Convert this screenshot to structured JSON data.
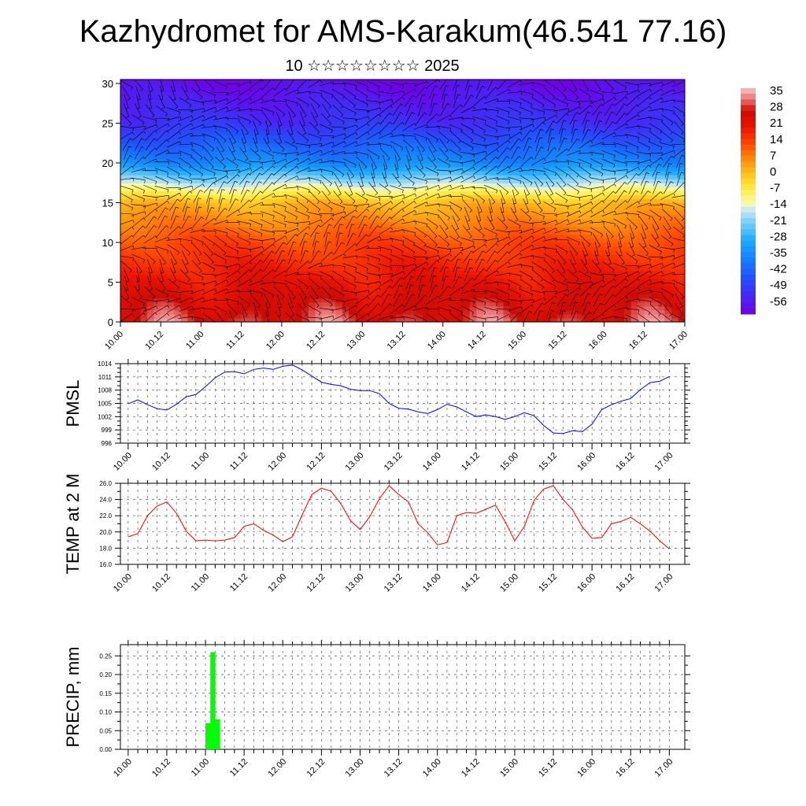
{
  "header": {
    "title": "Kazhydromet for AMS-Karakum(46.541 77.16)",
    "subtitle": "10 ☆☆☆☆☆☆☆☆ 2025"
  },
  "x_ticks": [
    "10.00",
    "10.12",
    "11.00",
    "11.12",
    "12.00",
    "12.12",
    "13.00",
    "13.12",
    "14.00",
    "14.12",
    "15.00",
    "15.12",
    "16.00",
    "16.12",
    "17.00"
  ],
  "colors": {
    "pmsl_line": "#0000ff",
    "temp_line": "#ff0000",
    "precip_bar": "#00ff00",
    "grid": "#555555"
  },
  "chart_data": [
    {
      "type": "heatmap",
      "title": "Kazhydromet for AMS-Karakum(46.541 77.16)",
      "subtitle": "10 ☆☆☆☆☆☆☆☆ 2025",
      "x": [
        "10.00",
        "10.12",
        "11.00",
        "11.12",
        "12.00",
        "12.12",
        "13.00",
        "13.12",
        "14.00",
        "14.12",
        "15.00",
        "15.12",
        "16.00",
        "16.12",
        "17.00"
      ],
      "xlabel": "",
      "ylabel": "",
      "ylim": [
        0,
        30.5
      ],
      "y_ticks": [
        0,
        5,
        10,
        15,
        20,
        25,
        30
      ],
      "colorbar": {
        "labels": [
          "35",
          "28",
          "21",
          "14",
          "7",
          "0",
          "-7",
          "-14",
          "-21",
          "-28",
          "-35",
          "-42",
          "-49",
          "-56"
        ],
        "range": [
          -60,
          38
        ]
      },
      "overlay": "wind barbs / streamlines"
    },
    {
      "type": "line",
      "ylabel": "PMSL",
      "ylim": [
        996,
        1014
      ],
      "y_ticks": [
        "1014",
        "1011",
        "1008",
        "1005",
        "1002",
        "999",
        "996"
      ],
      "x": [
        10.0,
        10.125,
        10.25,
        10.375,
        10.5,
        10.625,
        10.75,
        10.875,
        11.0,
        11.125,
        11.25,
        11.375,
        11.5,
        11.625,
        11.75,
        11.875,
        12.0,
        12.125,
        12.25,
        12.375,
        12.5,
        12.625,
        12.75,
        12.875,
        13.0,
        13.125,
        13.25,
        13.375,
        13.5,
        13.625,
        13.75,
        13.875,
        14.0,
        14.125,
        14.25,
        14.375,
        14.5,
        14.625,
        14.75,
        14.875,
        15.0,
        15.125,
        15.25,
        15.375,
        15.5,
        15.625,
        15.75,
        15.875,
        16.0,
        16.125,
        16.25,
        16.375,
        16.5,
        16.625,
        16.75,
        16.875,
        17.0
      ],
      "series": [
        {
          "values": [
            1004.9,
            1005.8,
            1004.7,
            1003.8,
            1003.5,
            1004.8,
            1006.5,
            1007.0,
            1008.8,
            1010.8,
            1012.1,
            1012.2,
            1011.7,
            1012.7,
            1013.0,
            1012.7,
            1013.4,
            1013.7,
            1012.6,
            1011.2,
            1009.8,
            1009.3,
            1009.0,
            1008.2,
            1007.9,
            1007.9,
            1007.2,
            1005.0,
            1003.9,
            1003.7,
            1003.1,
            1002.7,
            1003.6,
            1004.8,
            1004.2,
            1003.1,
            1002.0,
            1002.4,
            1002.0,
            1001.4,
            1002.0,
            1002.9,
            1002.2,
            1000.0,
            998.3,
            998.2,
            998.8,
            998.6,
            1000.3,
            1003.6,
            1004.7,
            1005.5,
            1006.1,
            1008.1,
            1009.7,
            1010.0,
            1011.1
          ]
        }
      ]
    },
    {
      "type": "line",
      "ylabel": "TEMP at 2 M",
      "ylim": [
        16,
        26
      ],
      "y_ticks": [
        "26.0",
        "24.0",
        "22.0",
        "20.0",
        "18.0",
        "16.0"
      ],
      "x": [
        10.0,
        10.125,
        10.25,
        10.375,
        10.5,
        10.625,
        10.75,
        10.875,
        11.0,
        11.125,
        11.25,
        11.375,
        11.5,
        11.625,
        11.75,
        11.875,
        12.0,
        12.125,
        12.25,
        12.375,
        12.5,
        12.625,
        12.75,
        12.875,
        13.0,
        13.125,
        13.25,
        13.375,
        13.5,
        13.625,
        13.75,
        13.875,
        14.0,
        14.125,
        14.25,
        14.375,
        14.5,
        14.625,
        14.75,
        14.875,
        15.0,
        15.125,
        15.25,
        15.375,
        15.5,
        15.625,
        15.75,
        15.875,
        16.0,
        16.125,
        16.25,
        16.375,
        16.5,
        16.625,
        16.75,
        16.875,
        17.0
      ],
      "series": [
        {
          "values": [
            19.4,
            19.8,
            22.0,
            23.2,
            23.7,
            22.3,
            20.1,
            18.9,
            19.0,
            18.9,
            19.0,
            19.3,
            20.7,
            21.0,
            20.2,
            19.6,
            18.8,
            19.4,
            22.1,
            24.6,
            25.4,
            25.0,
            23.5,
            21.4,
            20.3,
            21.9,
            24.1,
            25.7,
            24.6,
            23.7,
            21.0,
            19.9,
            18.4,
            18.7,
            22.0,
            22.4,
            22.3,
            22.8,
            23.3,
            21.3,
            18.9,
            20.7,
            23.9,
            25.3,
            25.7,
            24.0,
            22.7,
            20.6,
            19.2,
            19.3,
            21.0,
            21.3,
            21.8,
            21.0,
            20.1,
            18.9,
            17.9
          ]
        }
      ]
    },
    {
      "type": "bar",
      "ylabel": "PRECIP, mm",
      "ylim": [
        0,
        0.28
      ],
      "y_ticks": [
        "0.25",
        "0.20",
        "0.15",
        "0.10",
        "0.05",
        "0.00"
      ],
      "x_start": [
        11.0,
        11.0625,
        11.125
      ],
      "x_end": [
        11.0625,
        11.125,
        11.1875
      ],
      "values": [
        0.07,
        0.26,
        0.08
      ]
    }
  ]
}
